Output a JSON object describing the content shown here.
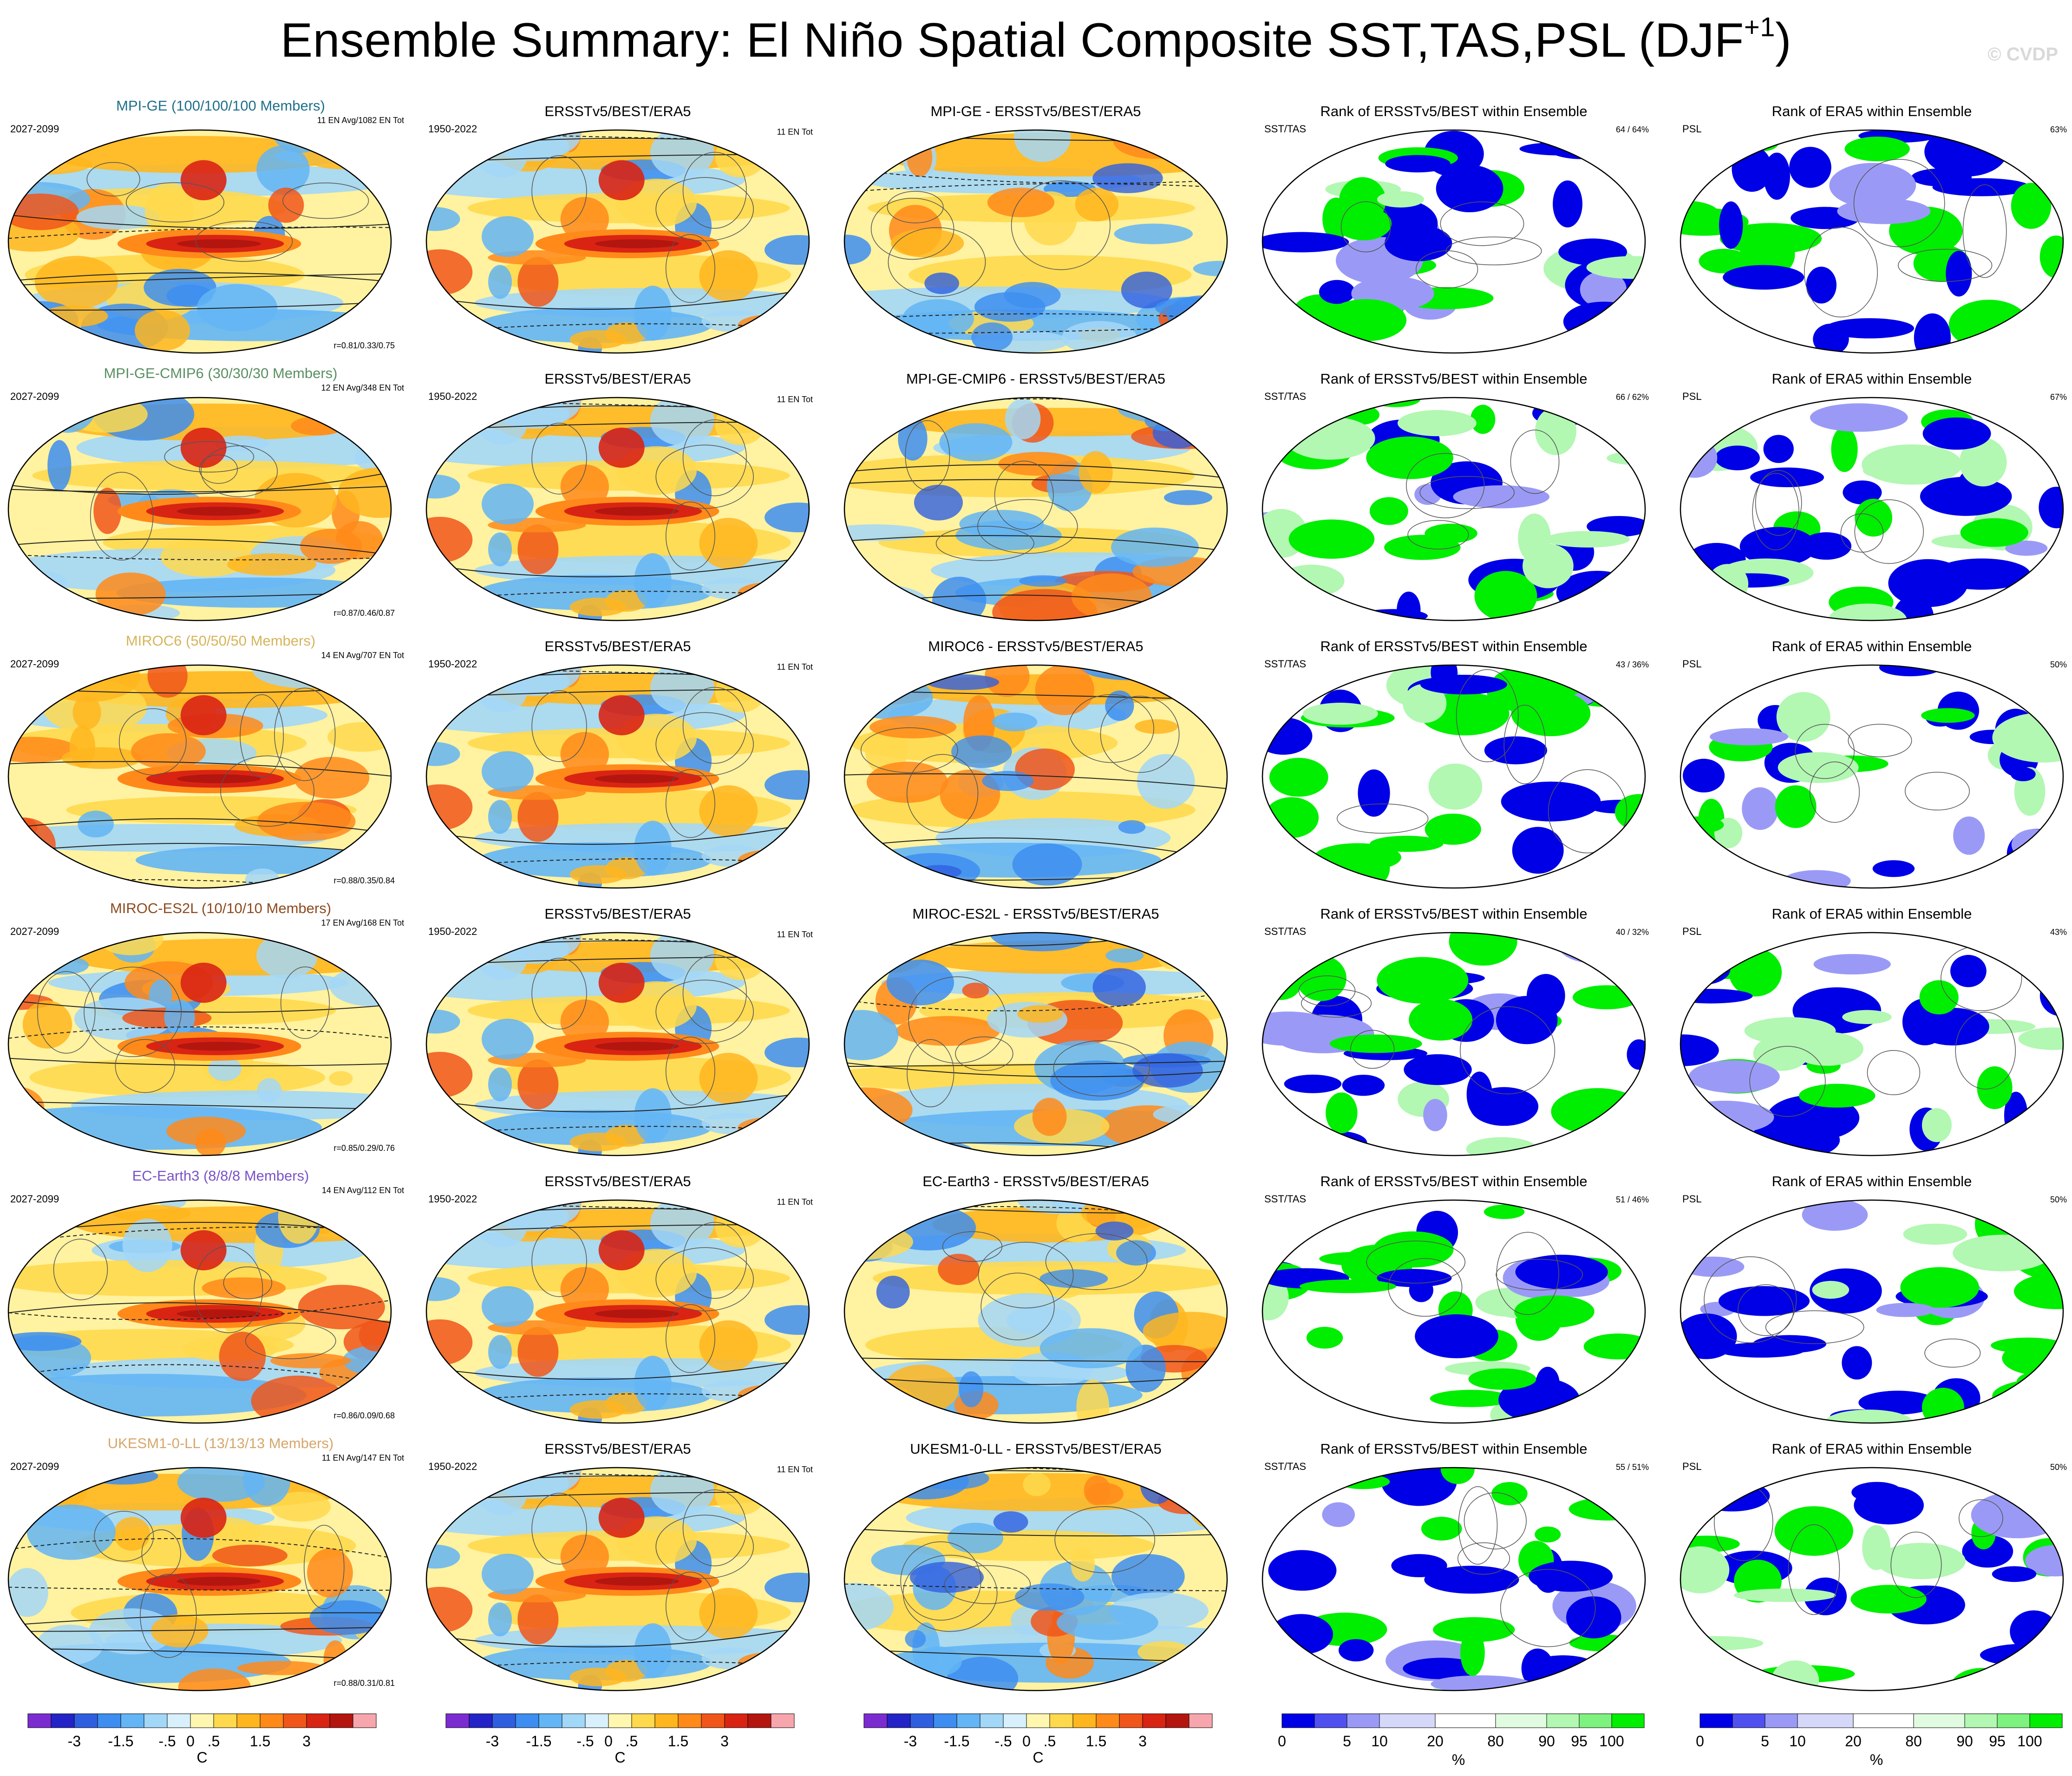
{
  "title": {
    "text": "Ensemble Summary: El Niño Spatial Composite SST,TAS,PSL (DJF",
    "sup": "+1",
    "close": ")"
  },
  "watermark": "© CVDP",
  "colors": {
    "temp_scale": [
      "#7b2cd1",
      "#2323c8",
      "#2f5fe0",
      "#3d8ef0",
      "#63b5f5",
      "#a3d7f7",
      "#d8f0fb",
      "#fff7b0",
      "#ffd94d",
      "#ffb61e",
      "#ff8a1a",
      "#f0561a",
      "#d92414",
      "#b3160f",
      "#f7a6ad"
    ],
    "rank_scale": [
      "#0000e6",
      "#5050f0",
      "#9a9af6",
      "#d6d8fa",
      "#ffffff",
      "#e1fbe1",
      "#b2f7b2",
      "#7ef27e",
      "#00ee00"
    ]
  },
  "row_labels": [
    {
      "model_title": "MPI-GE (100/100/100 Members)",
      "title_color": "#1f6f8b",
      "period": "2027-2099",
      "events": "11 EN Avg/1082 EN Tot",
      "corr": "r=0.81/0.33/0.75",
      "diff_title": "MPI-GE - ERSSTv5/BEST/ERA5",
      "rank1": "64 /  64%",
      "rank2": "63%"
    },
    {
      "model_title": "MPI-GE-CMIP6 (30/30/30 Members)",
      "title_color": "#5a8f63",
      "period": "2027-2099",
      "events": "12 EN Avg/348 EN Tot",
      "corr": "r=0.87/0.46/0.87",
      "diff_title": "MPI-GE-CMIP6 - ERSSTv5/BEST/ERA5",
      "rank1": "66 /  62%",
      "rank2": "67%"
    },
    {
      "model_title": "MIROC6 (50/50/50 Members)",
      "title_color": "#d6b45a",
      "period": "2027-2099",
      "events": "14 EN Avg/707 EN Tot",
      "corr": "r=0.88/0.35/0.84",
      "diff_title": "MIROC6 - ERSSTv5/BEST/ERA5",
      "rank1": "43 /  36%",
      "rank2": "50%"
    },
    {
      "model_title": "MIROC-ES2L (10/10/10 Members)",
      "title_color": "#8b4a1f",
      "period": "2027-2099",
      "events": "17 EN Avg/168 EN Tot",
      "corr": "r=0.85/0.29/0.76",
      "diff_title": "MIROC-ES2L - ERSSTv5/BEST/ERA5",
      "rank1": "40 /  32%",
      "rank2": "43%"
    },
    {
      "model_title": "EC-Earth3 (8/8/8 Members)",
      "title_color": "#7a52c7",
      "period": "2027-2099",
      "events": "14 EN Avg/112 EN Tot",
      "corr": "r=0.86/0.09/0.68",
      "diff_title": "EC-Earth3 - ERSSTv5/BEST/ERA5",
      "rank1": "51 /  46%",
      "rank2": "50%"
    },
    {
      "model_title": "UKESM1-0-LL (13/13/13 Members)",
      "title_color": "#d6a66b",
      "period": "2027-2099",
      "events": "11 EN Avg/147 EN Tot",
      "corr": "r=0.88/0.31/0.81",
      "diff_title": "UKESM1-0-LL - ERSSTv5/BEST/ERA5",
      "rank1": "55 /  51%",
      "rank2": "50%"
    }
  ],
  "common": {
    "obs_title": "ERSSTv5/BEST/ERA5",
    "obs_period": "1950-2022",
    "obs_events": "11 EN Tot",
    "rank1_title": "Rank of ERSSTv5/BEST within Ensemble",
    "rank1_var": "SST/TAS",
    "rank2_title": "Rank of ERA5 within Ensemble",
    "rank2_var": "PSL"
  },
  "colorbars": {
    "temp_ticks": [
      "-3",
      "-1.5",
      "-.5",
      "0",
      ".5",
      "1.5",
      "3"
    ],
    "temp_unit": "C",
    "rank_ticks": [
      "0",
      "5",
      "10",
      "20",
      "80",
      "90",
      "95",
      "100"
    ],
    "rank_unit": "%"
  },
  "chart_data": {
    "type": "heatmap",
    "title": "Ensemble Summary: El Niño Spatial Composite SST,TAS,PSL (DJF+1)",
    "panels_per_row": [
      "model composite",
      "observed composite",
      "model minus observed",
      "rank of ERSSTv5/BEST within ensemble",
      "rank of ERA5 within ensemble"
    ],
    "rows": [
      "MPI-GE",
      "MPI-GE-CMIP6",
      "MIROC6",
      "MIROC-ES2L",
      "EC-Earth3",
      "UKESM1-0-LL"
    ],
    "temperature_colorbar": {
      "unit": "C",
      "ticks": [
        -3,
        -1.5,
        -0.5,
        0,
        0.5,
        1.5,
        3
      ]
    },
    "rank_colorbar": {
      "unit": "%",
      "ticks": [
        0,
        5,
        10,
        20,
        80,
        90,
        95,
        100
      ]
    },
    "pattern_correlations": [
      [
        0.81,
        0.33,
        0.75
      ],
      [
        0.87,
        0.46,
        0.87
      ],
      [
        0.88,
        0.35,
        0.84
      ],
      [
        0.85,
        0.29,
        0.76
      ],
      [
        0.86,
        0.09,
        0.68
      ],
      [
        0.88,
        0.31,
        0.81
      ]
    ],
    "rank_sst_tas": [
      [
        64,
        64
      ],
      [
        66,
        62
      ],
      [
        43,
        36
      ],
      [
        40,
        32
      ],
      [
        51,
        46
      ],
      [
        55,
        51
      ]
    ],
    "rank_psl": [
      63,
      67,
      50,
      43,
      50,
      50
    ]
  }
}
